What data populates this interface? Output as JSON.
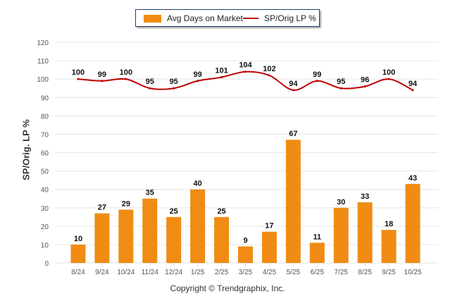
{
  "chart_data": {
    "type": "bar",
    "title": "",
    "xlabel": "",
    "ylabel": "SP/Orig. LP %",
    "ylim": [
      0,
      120
    ],
    "yticks": [
      0,
      10,
      20,
      30,
      40,
      50,
      60,
      70,
      80,
      90,
      100,
      110,
      120
    ],
    "grid": true,
    "legend_position": "top-center",
    "categories": [
      "8/24",
      "9/24",
      "10/24",
      "11/24",
      "12/24",
      "1/25",
      "2/25",
      "3/25",
      "4/25",
      "5/25",
      "6/25",
      "7/25",
      "8/25",
      "9/25",
      "10/25"
    ],
    "series": [
      {
        "name": "Avg Days on Market",
        "type": "bar",
        "color": "#f08c14",
        "values": [
          10,
          27,
          29,
          35,
          25,
          40,
          25,
          9,
          17,
          67,
          11,
          30,
          33,
          18,
          43
        ]
      },
      {
        "name": "SP/Orig LP %",
        "type": "line",
        "color": "#c00000",
        "values": [
          100,
          99,
          100,
          95,
          95,
          99,
          101,
          104,
          102,
          94,
          99,
          95,
          96,
          100,
          94
        ]
      }
    ]
  },
  "footer": {
    "copyright": "Copyright © Trendgraphix, Inc."
  }
}
